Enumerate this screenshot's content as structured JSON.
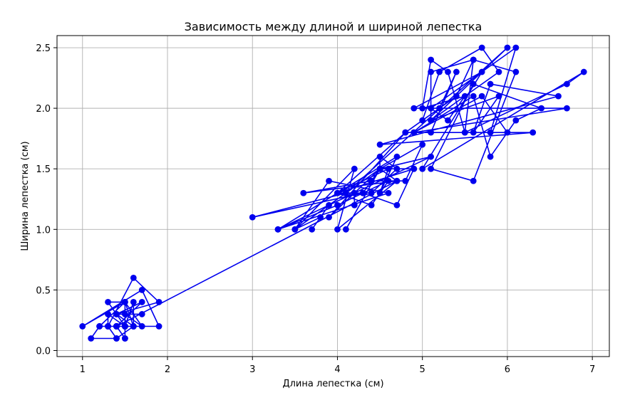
{
  "chart_data": {
    "type": "line",
    "title": "Зависимость между длиной и шириной лепестка",
    "xlabel": "Длина лепестка (см)",
    "ylabel": "Ширина лепестка (см)",
    "xlim": [
      0.7,
      7.2
    ],
    "ylim": [
      -0.05,
      2.6
    ],
    "xticks": [
      1,
      2,
      3,
      4,
      5,
      6,
      7
    ],
    "yticks": [
      0.0,
      0.5,
      1.0,
      1.5,
      2.0,
      2.5
    ],
    "xtick_labels": [
      "1",
      "2",
      "3",
      "4",
      "5",
      "6",
      "7"
    ],
    "ytick_labels": [
      "0.0",
      "0.5",
      "1.0",
      "1.5",
      "2.0",
      "2.5"
    ],
    "grid": true,
    "series_color": "#0000ee",
    "series": [
      {
        "x": [
          1.4,
          1.4,
          1.3,
          1.5,
          1.4,
          1.7,
          1.4,
          1.5,
          1.4,
          1.5,
          1.5,
          1.6,
          1.4,
          1.1,
          1.2,
          1.5,
          1.3,
          1.4,
          1.7,
          1.5,
          1.7,
          1.5,
          1.0,
          1.7,
          1.9,
          1.6,
          1.6,
          1.5,
          1.4,
          1.6,
          1.6,
          1.5,
          1.5,
          1.4,
          1.5,
          1.2,
          1.3,
          1.4,
          1.3,
          1.5,
          1.3,
          1.3,
          1.3,
          1.6,
          1.9,
          1.4,
          1.6,
          1.4,
          1.5,
          1.4,
          4.7,
          4.5,
          4.9,
          4.0,
          4.6,
          4.5,
          4.7,
          3.3,
          4.6,
          3.9,
          3.5,
          4.2,
          4.0,
          4.7,
          3.6,
          4.4,
          4.5,
          4.1,
          4.5,
          3.9,
          4.8,
          4.0,
          4.9,
          4.7,
          4.3,
          4.4,
          4.8,
          5.0,
          4.5,
          3.5,
          3.8,
          3.7,
          3.9,
          5.1,
          4.5,
          4.5,
          4.7,
          4.4,
          4.1,
          4.0,
          4.4,
          4.6,
          4.0,
          3.3,
          4.2,
          4.2,
          4.2,
          4.3,
          3.0,
          4.1,
          6.0,
          5.1,
          5.9,
          5.6,
          5.8,
          6.6,
          4.5,
          6.3,
          5.8,
          6.1,
          5.1,
          5.3,
          5.5,
          5.0,
          5.1,
          5.3,
          5.5,
          6.7,
          6.9,
          5.0,
          5.7,
          4.9,
          6.7,
          4.9,
          5.7,
          6.0,
          4.8,
          4.9,
          5.6,
          5.8,
          6.1,
          6.4,
          5.6,
          5.1,
          5.6,
          6.1,
          5.6,
          5.5,
          4.8,
          5.4,
          5.6,
          5.1,
          5.1,
          5.9,
          5.7,
          5.2,
          5.0,
          5.2,
          5.4,
          5.1
        ],
        "y": [
          0.2,
          0.2,
          0.2,
          0.2,
          0.2,
          0.4,
          0.3,
          0.2,
          0.2,
          0.1,
          0.2,
          0.2,
          0.1,
          0.1,
          0.2,
          0.4,
          0.4,
          0.3,
          0.3,
          0.3,
          0.2,
          0.4,
          0.2,
          0.5,
          0.2,
          0.2,
          0.4,
          0.2,
          0.2,
          0.2,
          0.2,
          0.4,
          0.1,
          0.2,
          0.2,
          0.2,
          0.2,
          0.1,
          0.2,
          0.2,
          0.3,
          0.3,
          0.2,
          0.6,
          0.4,
          0.3,
          0.2,
          0.2,
          0.2,
          0.2,
          1.4,
          1.5,
          1.5,
          1.3,
          1.5,
          1.3,
          1.6,
          1.0,
          1.3,
          1.4,
          1.0,
          1.5,
          1.0,
          1.4,
          1.3,
          1.4,
          1.5,
          1.0,
          1.5,
          1.1,
          1.8,
          1.3,
          1.5,
          1.2,
          1.3,
          1.4,
          1.4,
          1.7,
          1.5,
          1.0,
          1.1,
          1.0,
          1.2,
          1.6,
          1.5,
          1.6,
          1.5,
          1.3,
          1.3,
          1.3,
          1.2,
          1.4,
          1.2,
          1.0,
          1.3,
          1.2,
          1.3,
          1.3,
          1.1,
          1.3,
          2.5,
          1.9,
          2.1,
          1.8,
          2.2,
          2.1,
          1.7,
          1.8,
          1.8,
          2.5,
          2.0,
          1.9,
          2.1,
          2.0,
          2.4,
          2.3,
          1.8,
          2.2,
          2.3,
          1.5,
          2.3,
          2.0,
          2.0,
          1.8,
          2.1,
          1.8,
          1.8,
          1.8,
          2.1,
          1.6,
          1.9,
          2.0,
          2.2,
          1.5,
          1.4,
          2.3,
          2.4,
          1.8,
          1.8,
          2.1,
          2.4,
          2.3,
          1.9,
          2.3,
          2.5,
          2.3,
          1.9,
          2.0,
          2.3,
          1.8
        ]
      }
    ]
  }
}
